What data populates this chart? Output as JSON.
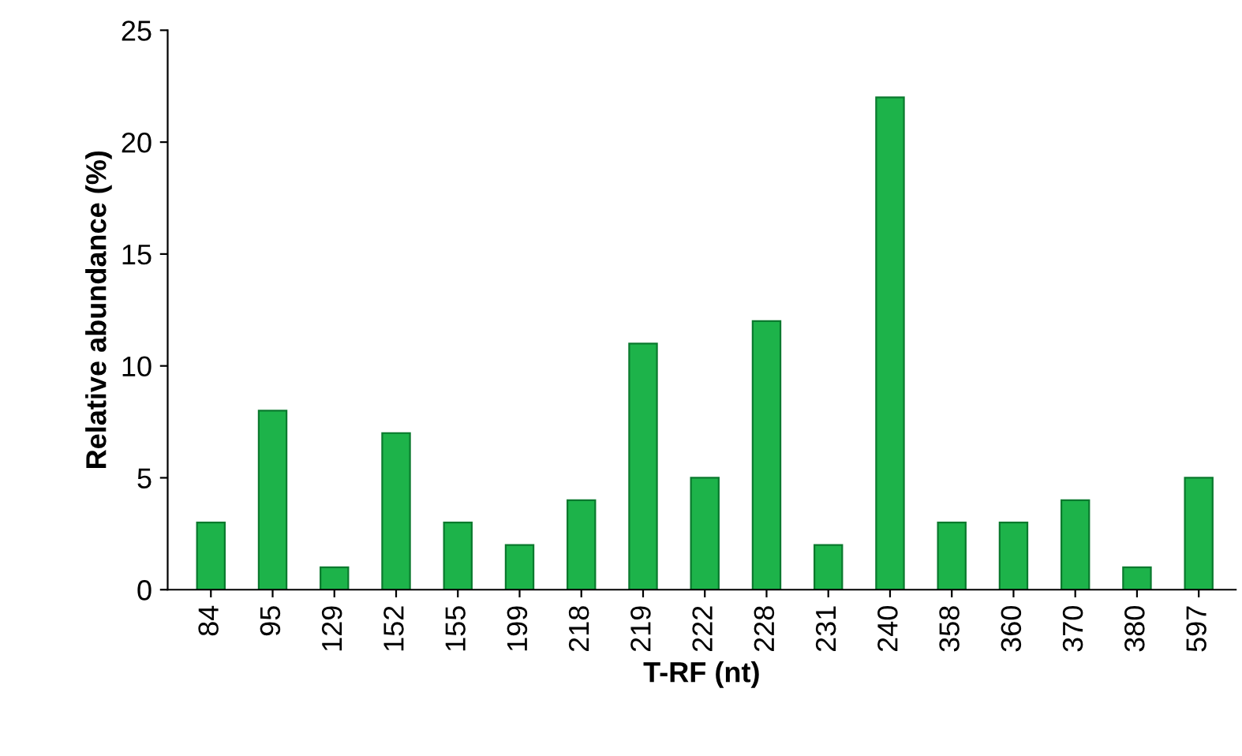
{
  "chart_data": {
    "type": "bar",
    "xlabel": "T-RF (nt)",
    "ylabel": "Relative abundance (%)",
    "categories": [
      "84",
      "95",
      "129",
      "152",
      "155",
      "199",
      "218",
      "219",
      "222",
      "228",
      "231",
      "240",
      "358",
      "360",
      "370",
      "380",
      "597"
    ],
    "values": [
      3,
      8,
      1,
      7,
      3,
      2,
      4,
      11,
      5,
      12,
      2,
      22,
      3,
      3,
      4,
      1,
      5
    ],
    "color": "#1db34a",
    "ylim": [
      0,
      25
    ],
    "yticks": [
      0,
      5,
      10,
      15,
      20,
      25
    ],
    "grid": false
  }
}
